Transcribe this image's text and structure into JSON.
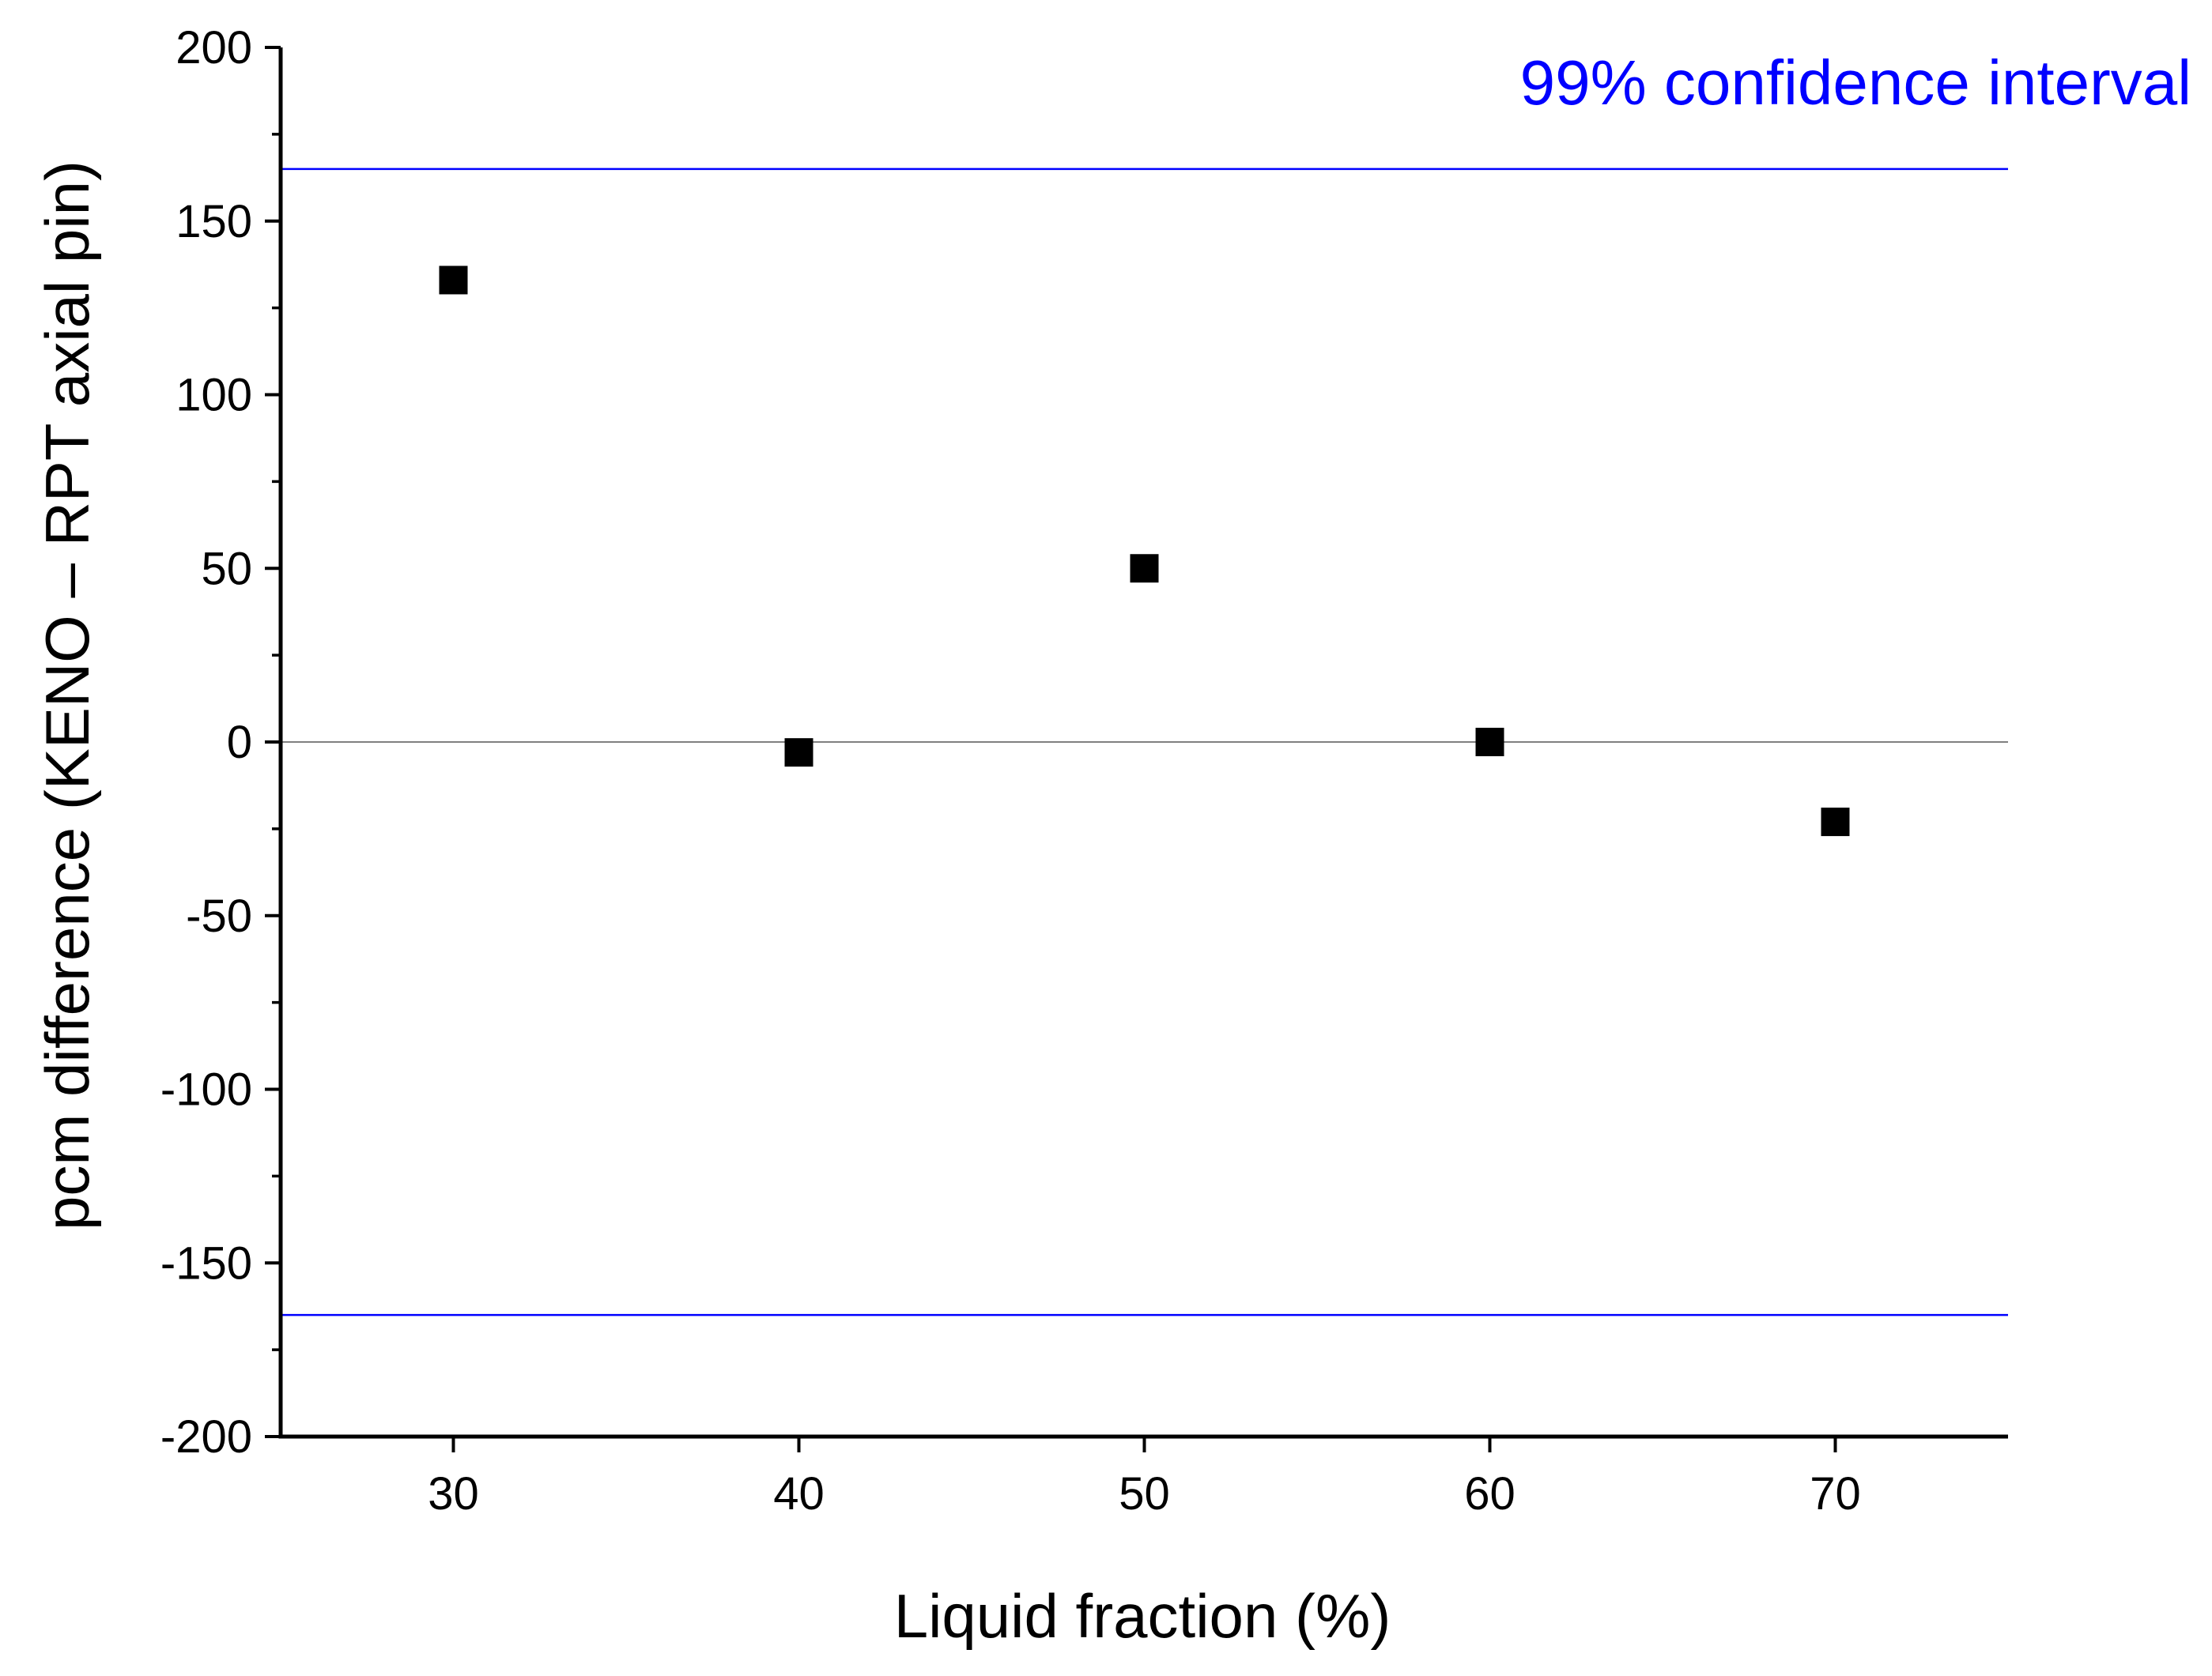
{
  "chart_data": {
    "type": "scatter",
    "title": "",
    "xlabel": "Liquid fraction (%)",
    "ylabel": "pcm difference (KENO – RPT axial pin)",
    "xlim": [
      25,
      75
    ],
    "ylim": [
      -200,
      200
    ],
    "x_ticks": [
      30,
      40,
      50,
      60,
      70
    ],
    "x_tick_labels": [
      "30",
      "40",
      "50",
      "60",
      "70"
    ],
    "y_ticks": [
      -200,
      -150,
      -100,
      -50,
      0,
      50,
      100,
      150,
      200
    ],
    "y_tick_labels": [
      "-200",
      "-150",
      "-100",
      "-50",
      "0",
      "50",
      "100",
      "150",
      "200"
    ],
    "series": [
      {
        "name": "KENO – RPT",
        "marker": "square",
        "color": "#000000",
        "x": [
          30,
          40,
          50,
          60,
          70
        ],
        "y": [
          133,
          -3,
          50,
          0,
          -23
        ]
      }
    ],
    "reference_lines": {
      "zero": {
        "y": 0,
        "color": "#808080"
      },
      "confidence_interval": {
        "label": "99% confidence interval",
        "upper": 165,
        "lower": -165,
        "color": "#0000ff"
      }
    },
    "legend": "top-right",
    "grid": false
  }
}
